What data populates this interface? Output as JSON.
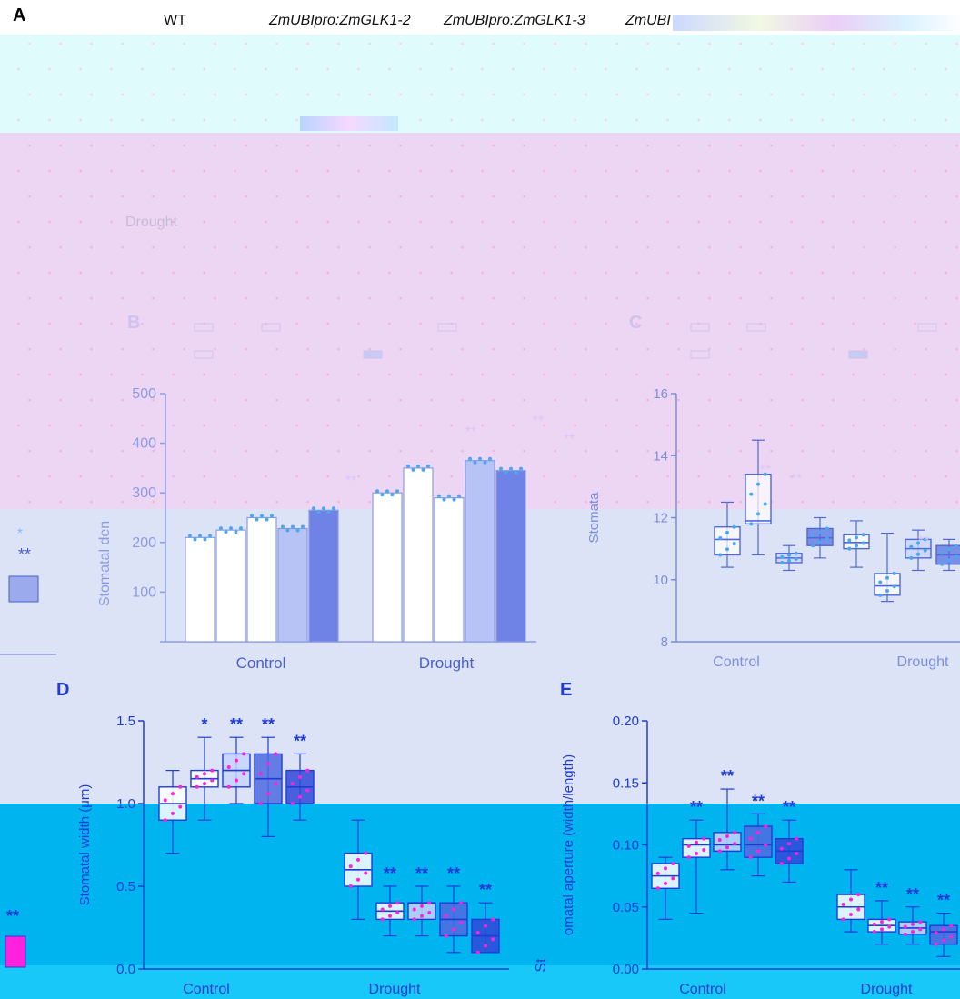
{
  "figure": {
    "panel_letters": [
      "A",
      "B",
      "C",
      "D",
      "E"
    ],
    "header_labels": [
      "WT",
      "ZmUBIpro:ZmGLK1-2",
      "ZmUBIpro:ZmGLK1-3",
      "ZmUBI"
    ],
    "row_label": "Drought",
    "colors": {
      "top_band": "#dffbfb",
      "pink_band": "#ecd6f4",
      "lavender_band": "#dde3f6",
      "cyan_band": "#00b4f0",
      "accent_blue": "#1f3cd6",
      "light_blue": "#4aa8f0",
      "magenta": "#ff22dd"
    }
  },
  "chart_data": [
    {
      "panel": "B",
      "type": "bar",
      "ylabel": "Stomatal den",
      "ylim": [
        0,
        500
      ],
      "yticks": [
        "100",
        "200",
        "300",
        "400",
        "500"
      ],
      "categories": [
        "Control",
        "Drought"
      ],
      "series": [
        {
          "values": [
            210,
            300
          ]
        },
        {
          "values": [
            225,
            350
          ]
        },
        {
          "values": [
            250,
            290
          ]
        },
        {
          "values": [
            228,
            365
          ]
        },
        {
          "values": [
            265,
            345
          ]
        }
      ],
      "annotations": [
        "**",
        "**",
        "**",
        "**"
      ]
    },
    {
      "panel": "C",
      "type": "box",
      "ylabel": "Stomata",
      "ylim": [
        8,
        16
      ],
      "yticks": [
        "8",
        "10",
        "12",
        "14",
        "16"
      ],
      "categories": [
        "Control",
        "Drought"
      ],
      "groups": [
        {
          "category": "Control",
          "boxes": [
            {
              "q1": 10.8,
              "median": 11.3,
              "q3": 11.7,
              "min": 10.4,
              "max": 12.5
            },
            {
              "q1": 11.8,
              "median": 11.9,
              "q3": 13.4,
              "min": 10.8,
              "max": 14.5
            },
            {
              "q1": 10.55,
              "median": 10.7,
              "q3": 10.85,
              "min": 10.3,
              "max": 11.1
            },
            {
              "q1": 11.1,
              "median": 11.35,
              "q3": 11.65,
              "min": 10.7,
              "max": 12.0
            }
          ]
        },
        {
          "category": "Drought",
          "boxes": [
            {
              "q1": 11.0,
              "median": 11.2,
              "q3": 11.45,
              "min": 10.4,
              "max": 11.9
            },
            {
              "q1": 9.5,
              "median": 9.8,
              "q3": 10.2,
              "min": 9.3,
              "max": 11.5
            },
            {
              "q1": 10.7,
              "median": 11.0,
              "q3": 11.3,
              "min": 10.3,
              "max": 11.6
            },
            {
              "q1": 10.5,
              "median": 10.8,
              "q3": 11.1,
              "min": 10.3,
              "max": 11.3
            }
          ]
        }
      ],
      "annotations": [
        "**",
        "**",
        "**"
      ]
    },
    {
      "panel": "D",
      "type": "box",
      "ylabel": "Stomatal width (μm)",
      "ylim": [
        0.0,
        1.5
      ],
      "yticks": [
        "0.0",
        "0.5",
        "1.0",
        "1.5"
      ],
      "categories": [
        "Control",
        "Drought"
      ],
      "groups": [
        {
          "category": "Control",
          "boxes": [
            {
              "q1": 0.9,
              "median": 1.0,
              "q3": 1.1,
              "min": 0.7,
              "max": 1.2,
              "sig": ""
            },
            {
              "q1": 1.1,
              "median": 1.15,
              "q3": 1.2,
              "min": 0.9,
              "max": 1.4,
              "sig": "*"
            },
            {
              "q1": 1.1,
              "median": 1.2,
              "q3": 1.3,
              "min": 1.0,
              "max": 1.4,
              "sig": "**"
            },
            {
              "q1": 1.0,
              "median": 1.15,
              "q3": 1.3,
              "min": 0.8,
              "max": 1.4,
              "sig": "**"
            },
            {
              "q1": 1.0,
              "median": 1.1,
              "q3": 1.2,
              "min": 0.9,
              "max": 1.3,
              "sig": "**"
            }
          ]
        },
        {
          "category": "Drought",
          "boxes": [
            {
              "q1": 0.5,
              "median": 0.6,
              "q3": 0.7,
              "min": 0.3,
              "max": 0.9,
              "sig": ""
            },
            {
              "q1": 0.3,
              "median": 0.35,
              "q3": 0.4,
              "min": 0.2,
              "max": 0.5,
              "sig": "**"
            },
            {
              "q1": 0.3,
              "median": 0.4,
              "q3": 0.4,
              "min": 0.2,
              "max": 0.5,
              "sig": "**"
            },
            {
              "q1": 0.2,
              "median": 0.3,
              "q3": 0.4,
              "min": 0.1,
              "max": 0.5,
              "sig": "**"
            },
            {
              "q1": 0.1,
              "median": 0.2,
              "q3": 0.3,
              "min": 0.1,
              "max": 0.4,
              "sig": "**"
            }
          ]
        }
      ]
    },
    {
      "panel": "E",
      "type": "box",
      "ylabel": "omatal aperture (width/length)",
      "ylabel_prefix": "St",
      "ylim": [
        0.0,
        0.2
      ],
      "yticks": [
        "0.00",
        "0.05",
        "0.10",
        "0.15",
        "0.20"
      ],
      "categories": [
        "Control",
        "Drought"
      ],
      "groups": [
        {
          "category": "Control",
          "boxes": [
            {
              "q1": 0.065,
              "median": 0.075,
              "q3": 0.085,
              "min": 0.04,
              "max": 0.09,
              "sig": ""
            },
            {
              "q1": 0.09,
              "median": 0.1,
              "q3": 0.105,
              "min": 0.045,
              "max": 0.12,
              "sig": "**"
            },
            {
              "q1": 0.095,
              "median": 0.1,
              "q3": 0.11,
              "min": 0.08,
              "max": 0.145,
              "sig": "**"
            },
            {
              "q1": 0.09,
              "median": 0.1,
              "q3": 0.115,
              "min": 0.075,
              "max": 0.125,
              "sig": "**"
            },
            {
              "q1": 0.085,
              "median": 0.095,
              "q3": 0.105,
              "min": 0.07,
              "max": 0.12,
              "sig": "**"
            }
          ]
        },
        {
          "category": "Drought",
          "boxes": [
            {
              "q1": 0.04,
              "median": 0.05,
              "q3": 0.06,
              "min": 0.03,
              "max": 0.08,
              "sig": ""
            },
            {
              "q1": 0.03,
              "median": 0.035,
              "q3": 0.04,
              "min": 0.02,
              "max": 0.055,
              "sig": "**"
            },
            {
              "q1": 0.028,
              "median": 0.033,
              "q3": 0.038,
              "min": 0.02,
              "max": 0.05,
              "sig": "**"
            },
            {
              "q1": 0.02,
              "median": 0.03,
              "q3": 0.035,
              "min": 0.01,
              "max": 0.045,
              "sig": "**"
            }
          ]
        }
      ]
    }
  ]
}
